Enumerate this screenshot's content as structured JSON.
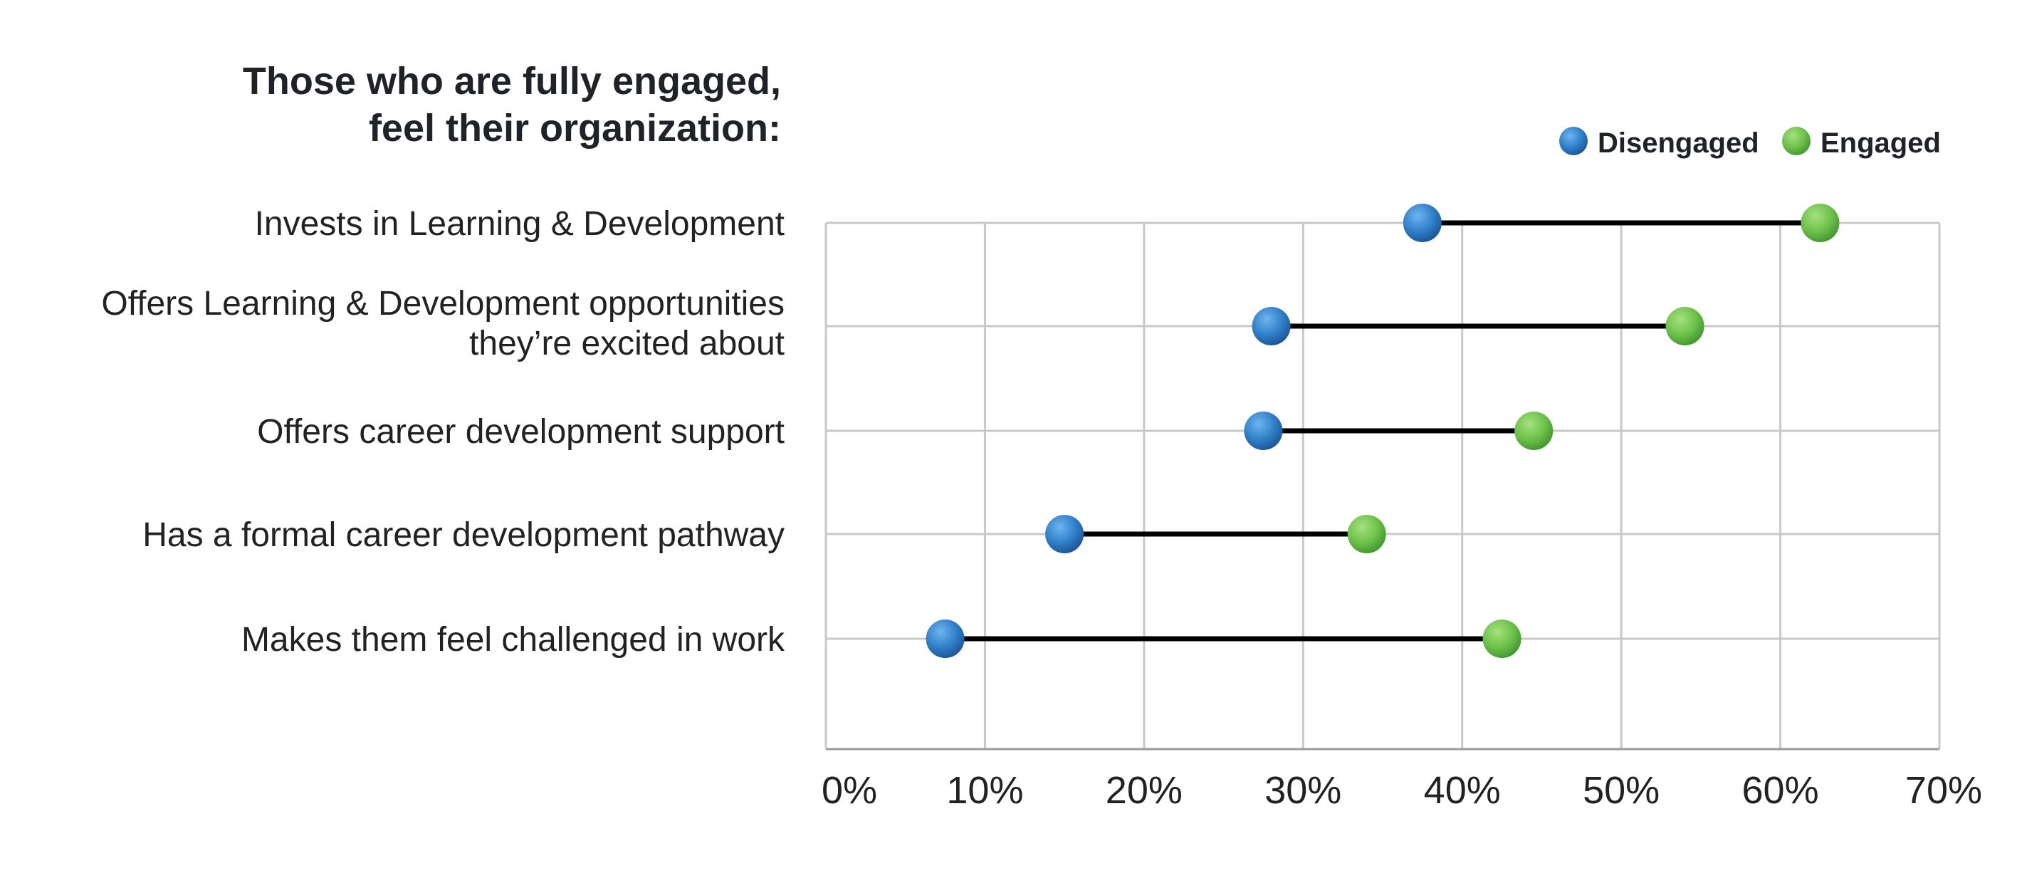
{
  "chart_data": {
    "type": "dumbbell",
    "title_lines": [
      "Those who are fully engaged,",
      "feel their organization:"
    ],
    "categories": [
      [
        "Invests in Learning & Development"
      ],
      [
        "Offers Learning & Development opportunities",
        "they’re excited about"
      ],
      [
        "Offers career development support"
      ],
      [
        "Has a formal career development pathway"
      ],
      [
        "Makes them feel challenged in work"
      ]
    ],
    "series": [
      {
        "name": "Disengaged",
        "color": "#2f7fc9",
        "values": [
          37.5,
          28,
          27.5,
          15,
          7.5
        ]
      },
      {
        "name": "Engaged",
        "color": "#6cc24a",
        "values": [
          62.5,
          54,
          44.5,
          34,
          42.5
        ]
      }
    ],
    "xlim": [
      0,
      70
    ],
    "xticks": [
      0,
      10,
      20,
      30,
      40,
      50,
      60,
      70
    ],
    "xtick_labels": [
      "0%",
      "10%",
      "20%",
      "30%",
      "40%",
      "50%",
      "60%",
      "70%"
    ],
    "grid": true,
    "legend_position": "top-right"
  }
}
